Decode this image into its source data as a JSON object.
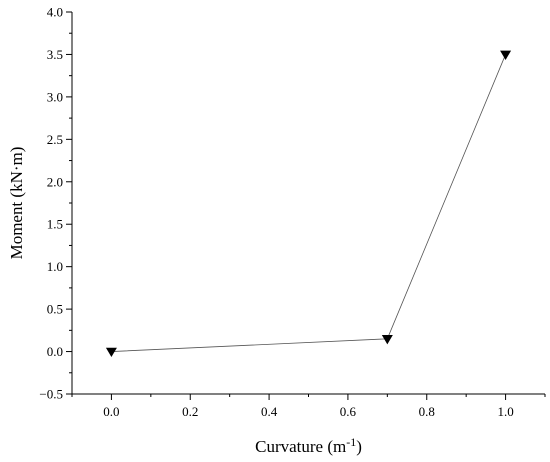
{
  "chart_data": {
    "type": "line",
    "xlabel": "Curvature (m",
    "xlabel_sup": "-1",
    "xlabel_end": ")",
    "ylabel": "Moment (kN·m)",
    "xlim": [
      -0.1,
      1.1
    ],
    "ylim": [
      -0.5,
      4.0
    ],
    "x_ticks": [
      0.0,
      0.2,
      0.4,
      0.6,
      0.8,
      1.0
    ],
    "x_tick_labels": [
      "0.0",
      "0.2",
      "0.4",
      "0.6",
      "0.8",
      "1.0"
    ],
    "y_ticks": [
      -0.5,
      0.0,
      0.5,
      1.0,
      1.5,
      2.0,
      2.5,
      3.0,
      3.5,
      4.0
    ],
    "y_tick_labels": [
      "−0.5",
      "0.0",
      "0.5",
      "1.0",
      "1.5",
      "2.0",
      "2.5",
      "3.0",
      "3.5",
      "4.0"
    ],
    "grid": false,
    "marker": "triangle-down",
    "series": [
      {
        "x": [
          0.0,
          0.7,
          1.0
        ],
        "y": [
          0.0,
          0.15,
          3.5
        ]
      }
    ]
  }
}
